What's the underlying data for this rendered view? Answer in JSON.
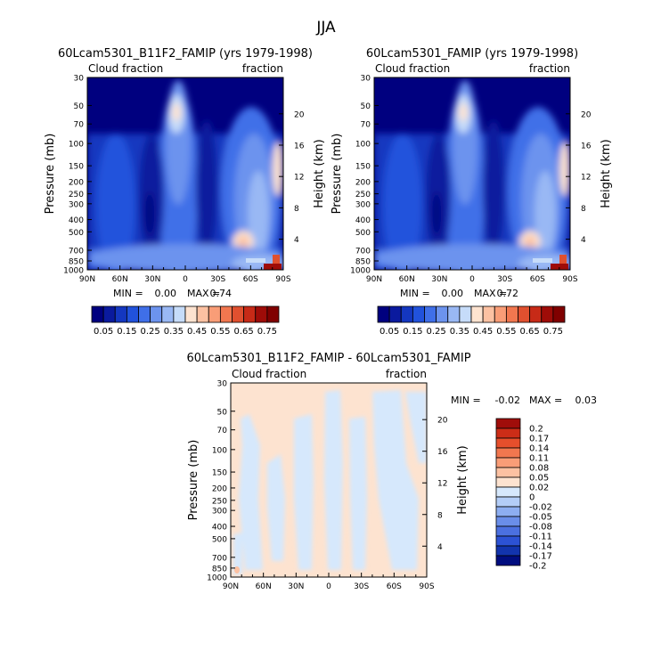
{
  "season": "JJA",
  "chart_data": [
    {
      "type": "heatmap",
      "title": "60Lcam5301_B11F2_FAMIP (yrs 1979-1998)",
      "left_label": "Cloud fraction",
      "right_label": "fraction",
      "ylabel": "Pressure (mb)",
      "y2label": "Height (km)",
      "xticks": [
        "90N",
        "60N",
        "30N",
        "0",
        "30S",
        "60S",
        "90S"
      ],
      "yticks": [
        "30",
        "50",
        "70",
        "100",
        "150",
        "200",
        "250",
        "300",
        "400",
        "500",
        "700",
        "850",
        "1000"
      ],
      "y2ticks": [
        "20",
        "16",
        "12",
        "8",
        "4"
      ],
      "min_label": "MIN =",
      "min_value": "0.00",
      "max_label": "MAX =",
      "max_value": "0.74",
      "min": 0.0,
      "max": 0.74,
      "colorbar_levels": [
        "0.05",
        "0.15",
        "0.25",
        "0.35",
        "0.45",
        "0.55",
        "0.65",
        "0.75"
      ]
    },
    {
      "type": "heatmap",
      "title": "60Lcam5301_FAMIP (yrs 1979-1998)",
      "left_label": "Cloud fraction",
      "right_label": "fraction",
      "ylabel": "Pressure (mb)",
      "y2label": "Height (km)",
      "xticks": [
        "90N",
        "60N",
        "30N",
        "0",
        "30S",
        "60S",
        "90S"
      ],
      "yticks": [
        "30",
        "50",
        "70",
        "100",
        "150",
        "200",
        "250",
        "300",
        "400",
        "500",
        "700",
        "850",
        "1000"
      ],
      "y2ticks": [
        "20",
        "16",
        "12",
        "8",
        "4"
      ],
      "min_label": "MIN =",
      "min_value": "0.00",
      "max_label": "MAX =",
      "max_value": "0.72",
      "min": 0.0,
      "max": 0.72,
      "colorbar_levels": [
        "0.05",
        "0.15",
        "0.25",
        "0.35",
        "0.45",
        "0.55",
        "0.65",
        "0.75"
      ]
    },
    {
      "type": "heatmap",
      "title": "60Lcam5301_B11F2_FAMIP - 60Lcam5301_FAMIP",
      "left_label": "Cloud fraction",
      "right_label": "fraction",
      "ylabel": "Pressure (mb)",
      "y2label": "Height (km)",
      "xticks": [
        "90N",
        "60N",
        "30N",
        "0",
        "30S",
        "60S",
        "90S"
      ],
      "yticks": [
        "30",
        "50",
        "70",
        "100",
        "150",
        "200",
        "250",
        "300",
        "400",
        "500",
        "700",
        "850",
        "1000"
      ],
      "y2ticks": [
        "20",
        "16",
        "12",
        "8",
        "4"
      ],
      "min_label": "MIN =",
      "min_value": "-0.02",
      "max_label": "MAX =",
      "max_value": "0.03",
      "min": -0.02,
      "max": 0.03,
      "colorbar_levels": [
        "0.2",
        "0.17",
        "0.14",
        "0.11",
        "0.08",
        "0.05",
        "0.02",
        "0",
        "-0.02",
        "-0.05",
        "-0.08",
        "-0.11",
        "-0.14",
        "-0.17",
        "-0.2"
      ]
    }
  ],
  "colors": {
    "seq": [
      "#00007f",
      "#0a1a9e",
      "#1437c0",
      "#2152dc",
      "#3f6fe8",
      "#6c93ee",
      "#99b8f4",
      "#c6dcf9",
      "#fde3d0",
      "#fcc1a2",
      "#f99d77",
      "#f1774f",
      "#e0502f",
      "#c72a17",
      "#9e0c08",
      "#800000"
    ],
    "diff": [
      "#a00d0a",
      "#cc2d17",
      "#e64f2c",
      "#f1774f",
      "#f99d77",
      "#fcc1a2",
      "#fde3d0",
      "#d6e8fc",
      "#b3cdf7",
      "#8daef1",
      "#6a8ee9",
      "#4b70e0",
      "#2c52d4",
      "#1234ad",
      "#000d7f"
    ]
  }
}
